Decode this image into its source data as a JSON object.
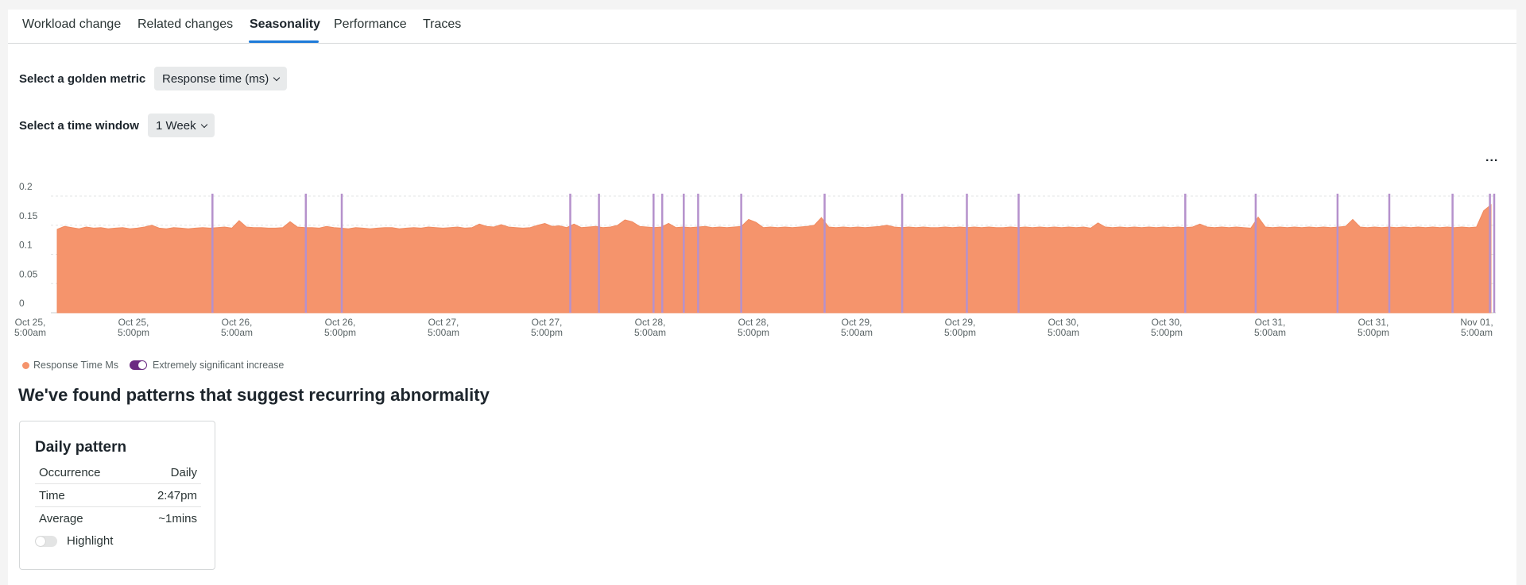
{
  "tabs": [
    {
      "label": "Workload change"
    },
    {
      "label": "Related changes"
    },
    {
      "label": "Seasonality"
    },
    {
      "label": "Performance"
    },
    {
      "label": "Traces"
    }
  ],
  "active_tab": "Seasonality",
  "golden_metric": {
    "label": "Select a golden metric",
    "value": "Response time (ms)"
  },
  "time_window": {
    "label": "Select a time window",
    "value": "1 Week"
  },
  "more_menu_label": "...",
  "colors": {
    "area": "#f5946c",
    "marker": "#b591cc",
    "accent": "#1d7ad9"
  },
  "chart_data": {
    "type": "area",
    "ylim": [
      0,
      0.2
    ],
    "y_ticks": [
      "0",
      "0.05",
      "0.1",
      "0.15",
      "0.2"
    ],
    "x_ticks": [
      {
        "line1": "Oct 25,",
        "line2": "5:00am"
      },
      {
        "line1": "Oct 25,",
        "line2": "5:00pm"
      },
      {
        "line1": "Oct 26,",
        "line2": "5:00am"
      },
      {
        "line1": "Oct 26,",
        "line2": "5:00pm"
      },
      {
        "line1": "Oct 27,",
        "line2": "5:00am"
      },
      {
        "line1": "Oct 27,",
        "line2": "5:00pm"
      },
      {
        "line1": "Oct 28,",
        "line2": "5:00am"
      },
      {
        "line1": "Oct 28,",
        "line2": "5:00pm"
      },
      {
        "line1": "Oct 29,",
        "line2": "5:00am"
      },
      {
        "line1": "Oct 29,",
        "line2": "5:00pm"
      },
      {
        "line1": "Oct 30,",
        "line2": "5:00am"
      },
      {
        "line1": "Oct 30,",
        "line2": "5:00pm"
      },
      {
        "line1": "Oct 31,",
        "line2": "5:00am"
      },
      {
        "line1": "Oct 31,",
        "line2": "5:00pm"
      },
      {
        "line1": "Nov 01,",
        "line2": "5:00am"
      }
    ],
    "series": [
      {
        "name": "Response Time Ms",
        "values": [
          0.143,
          0.148,
          0.146,
          0.144,
          0.147,
          0.145,
          0.146,
          0.144,
          0.145,
          0.146,
          0.144,
          0.145,
          0.147,
          0.15,
          0.145,
          0.144,
          0.146,
          0.145,
          0.144,
          0.145,
          0.146,
          0.145,
          0.146,
          0.147,
          0.145,
          0.158,
          0.147,
          0.146,
          0.146,
          0.145,
          0.145,
          0.146,
          0.156,
          0.147,
          0.146,
          0.146,
          0.145,
          0.148,
          0.146,
          0.145,
          0.144,
          0.146,
          0.145,
          0.144,
          0.145,
          0.146,
          0.146,
          0.144,
          0.145,
          0.146,
          0.145,
          0.147,
          0.146,
          0.145,
          0.146,
          0.147,
          0.145,
          0.146,
          0.152,
          0.148,
          0.147,
          0.151,
          0.147,
          0.146,
          0.145,
          0.146,
          0.15,
          0.153,
          0.148,
          0.149,
          0.146,
          0.152,
          0.146,
          0.147,
          0.148,
          0.146,
          0.147,
          0.15,
          0.159,
          0.156,
          0.148,
          0.147,
          0.146,
          0.147,
          0.153,
          0.146,
          0.147,
          0.146,
          0.147,
          0.148,
          0.146,
          0.147,
          0.146,
          0.147,
          0.148,
          0.16,
          0.155,
          0.146,
          0.147,
          0.146,
          0.147,
          0.146,
          0.147,
          0.148,
          0.15,
          0.163,
          0.147,
          0.146,
          0.147,
          0.146,
          0.147,
          0.146,
          0.147,
          0.148,
          0.15,
          0.147,
          0.146,
          0.147,
          0.146,
          0.147,
          0.146,
          0.146,
          0.147,
          0.146,
          0.147,
          0.146,
          0.147,
          0.146,
          0.147,
          0.146,
          0.146,
          0.147,
          0.146,
          0.147,
          0.146,
          0.147,
          0.146,
          0.147,
          0.146,
          0.147,
          0.146,
          0.147,
          0.145,
          0.154,
          0.147,
          0.146,
          0.147,
          0.146,
          0.147,
          0.146,
          0.147,
          0.146,
          0.147,
          0.146,
          0.147,
          0.146,
          0.147,
          0.152,
          0.147,
          0.146,
          0.147,
          0.146,
          0.147,
          0.146,
          0.145,
          0.164,
          0.147,
          0.146,
          0.147,
          0.146,
          0.147,
          0.146,
          0.147,
          0.146,
          0.147,
          0.146,
          0.147,
          0.148,
          0.16,
          0.147,
          0.146,
          0.147,
          0.146,
          0.147,
          0.146,
          0.147,
          0.146,
          0.147,
          0.146,
          0.147,
          0.146,
          0.147,
          0.146,
          0.147,
          0.146,
          0.147,
          0.175,
          0.185
        ]
      }
    ],
    "significant_increase_markers": [
      0.108,
      0.173,
      0.198,
      0.357,
      0.377,
      0.415,
      0.421,
      0.436,
      0.446,
      0.476,
      0.534,
      0.588,
      0.633,
      0.669,
      0.785,
      0.834,
      0.891,
      0.927,
      0.971,
      0.997,
      1.0
    ]
  },
  "legend": {
    "series_label": "Response Time Ms",
    "marker_label": "Extremely significant increase"
  },
  "headline": "We've found patterns that suggest recurring abnormality",
  "pattern_card": {
    "title": "Daily pattern",
    "rows": [
      {
        "label": "Occurrence",
        "value": "Daily"
      },
      {
        "label": "Time",
        "value": "2:47pm"
      },
      {
        "label": "Average",
        "value": "~1mins"
      }
    ],
    "highlight_label": "Highlight"
  }
}
